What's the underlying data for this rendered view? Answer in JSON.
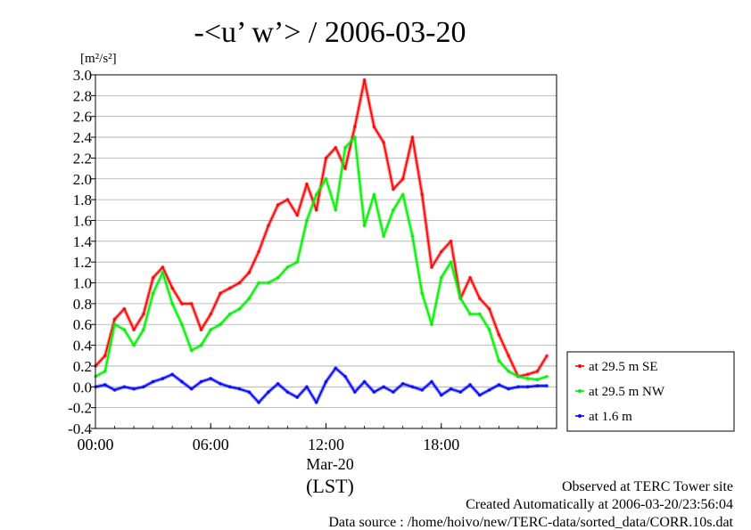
{
  "chart_data": {
    "type": "line",
    "title": "-<u’ w’> / 2006-03-20",
    "ylabel_units": "[m²/s²]",
    "ylim": [
      -0.4,
      3.0
    ],
    "y_ticks": [
      "3.0",
      "2.8",
      "2.6",
      "2.4",
      "2.2",
      "2.0",
      "1.8",
      "1.6",
      "1.4",
      "1.2",
      "1.0",
      "0.8",
      "0.6",
      "0.4",
      "0.2",
      "0.0",
      "-0.2",
      "-0.4"
    ],
    "x_tick_labels": [
      "00:00",
      "06:00",
      "12:00",
      "18:00"
    ],
    "x_date_label": "Mar-20",
    "x_axis_label": "(LST)",
    "xlim_hours": [
      0,
      24
    ],
    "grid": true,
    "legend_position": "right",
    "series": [
      {
        "name": "at 29.5 m SE",
        "color": "#ff0000",
        "x": [
          0,
          0.5,
          1,
          1.5,
          2,
          2.5,
          3,
          3.5,
          4,
          4.5,
          5,
          5.5,
          6,
          6.5,
          7,
          7.5,
          8,
          8.5,
          9,
          9.5,
          10,
          10.5,
          11,
          11.5,
          12,
          12.5,
          13,
          13.5,
          14,
          14.5,
          15,
          15.5,
          16,
          16.5,
          17,
          17.5,
          18,
          18.5,
          19,
          19.5,
          20,
          20.5,
          21,
          21.5,
          22,
          22.5,
          23,
          23.5
        ],
        "y": [
          0.2,
          0.3,
          0.65,
          0.75,
          0.55,
          0.7,
          1.05,
          1.15,
          0.95,
          0.8,
          0.8,
          0.55,
          0.7,
          0.9,
          0.95,
          1.0,
          1.1,
          1.3,
          1.55,
          1.75,
          1.8,
          1.65,
          1.95,
          1.7,
          2.2,
          2.3,
          2.1,
          2.5,
          2.95,
          2.5,
          2.35,
          1.9,
          2.0,
          2.4,
          1.85,
          1.15,
          1.3,
          1.4,
          0.85,
          1.05,
          0.85,
          0.75,
          0.5,
          0.3,
          0.1,
          0.12,
          0.15,
          0.3
        ]
      },
      {
        "name": "at 29.5 m NW",
        "color": "#00ee00",
        "x": [
          0,
          0.5,
          1,
          1.5,
          2,
          2.5,
          3,
          3.5,
          4,
          4.5,
          5,
          5.5,
          6,
          6.5,
          7,
          7.5,
          8,
          8.5,
          9,
          9.5,
          10,
          10.5,
          11,
          11.5,
          12,
          12.5,
          13,
          13.5,
          14,
          14.5,
          15,
          15.5,
          16,
          16.5,
          17,
          17.5,
          18,
          18.5,
          19,
          19.5,
          20,
          20.5,
          21,
          21.5,
          22,
          22.5,
          23,
          23.5
        ],
        "y": [
          0.1,
          0.15,
          0.6,
          0.55,
          0.4,
          0.55,
          0.9,
          1.1,
          0.8,
          0.6,
          0.35,
          0.4,
          0.55,
          0.6,
          0.7,
          0.75,
          0.85,
          1.0,
          1.0,
          1.05,
          1.15,
          1.2,
          1.6,
          1.85,
          2.0,
          1.7,
          2.3,
          2.4,
          1.55,
          1.85,
          1.45,
          1.7,
          1.85,
          1.45,
          0.9,
          0.6,
          1.05,
          1.2,
          0.85,
          0.7,
          0.7,
          0.55,
          0.25,
          0.15,
          0.1,
          0.08,
          0.07,
          0.1
        ]
      },
      {
        "name": "at 1.6 m",
        "color": "#0000ff",
        "x": [
          0,
          0.5,
          1,
          1.5,
          2,
          2.5,
          3,
          3.5,
          4,
          4.5,
          5,
          5.5,
          6,
          6.5,
          7,
          7.5,
          8,
          8.5,
          9,
          9.5,
          10,
          10.5,
          11,
          11.5,
          12,
          12.5,
          13,
          13.5,
          14,
          14.5,
          15,
          15.5,
          16,
          16.5,
          17,
          17.5,
          18,
          18.5,
          19,
          19.5,
          20,
          20.5,
          21,
          21.5,
          22,
          22.5,
          23,
          23.5
        ],
        "y": [
          0.0,
          0.02,
          -0.03,
          0.0,
          -0.02,
          0.0,
          0.05,
          0.08,
          0.12,
          0.05,
          -0.02,
          0.05,
          0.08,
          0.03,
          0.0,
          -0.02,
          -0.05,
          -0.15,
          -0.05,
          0.03,
          -0.05,
          -0.1,
          0.0,
          -0.15,
          0.05,
          0.18,
          0.1,
          -0.05,
          0.05,
          -0.05,
          0.0,
          -0.05,
          0.03,
          0.0,
          -0.03,
          0.05,
          -0.08,
          -0.02,
          -0.05,
          0.02,
          -0.08,
          -0.03,
          0.02,
          -0.02,
          0.0,
          0.0,
          0.01,
          0.01
        ]
      }
    ]
  },
  "footer": {
    "observed": "Observed at TERC Tower site",
    "created": "Created Automatically at 2006-03-20/23:56:04",
    "source": "Data source : /home/hoivo/new/TERC-data/sorted_data/CORR.10s.dat"
  }
}
